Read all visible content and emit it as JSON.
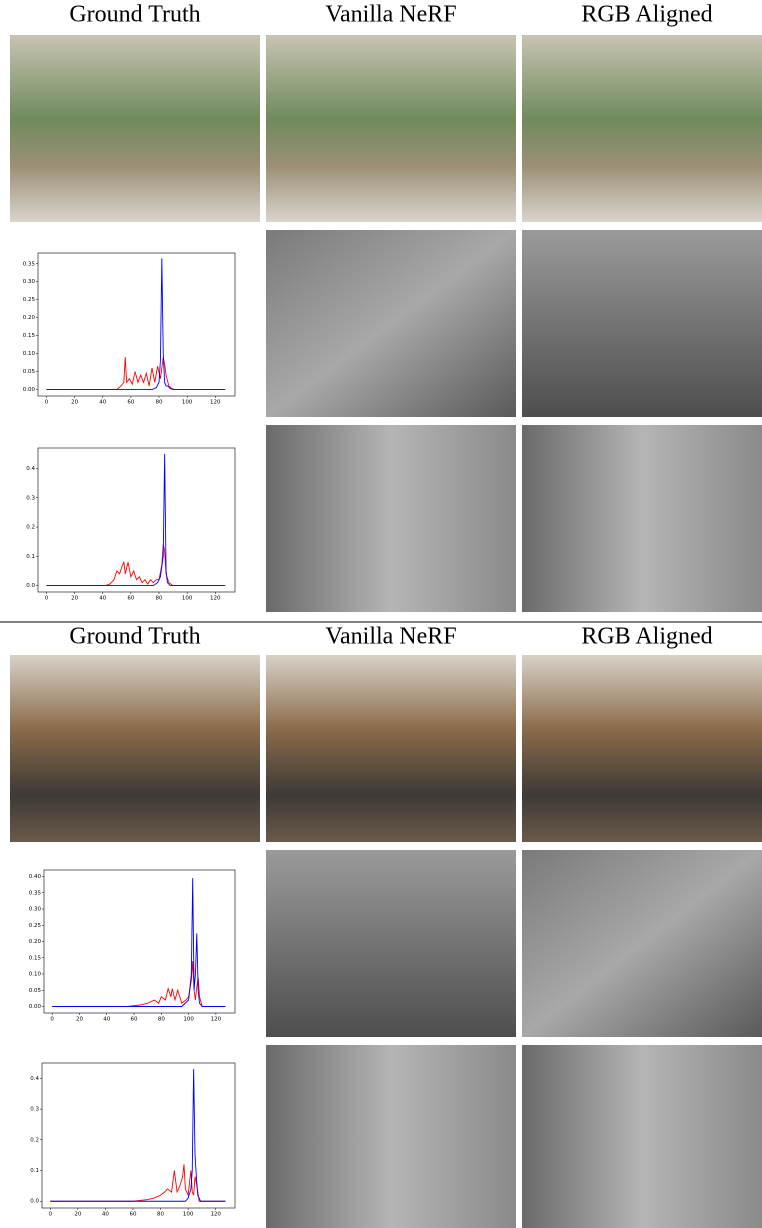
{
  "sections": [
    {
      "headers": [
        "Ground Truth",
        "Vanilla NeRF",
        "RGB Aligned"
      ]
    },
    {
      "headers": [
        "Ground Truth",
        "Vanilla NeRF",
        "RGB Aligned"
      ]
    }
  ],
  "chart_data": [
    {
      "type": "line",
      "xlim": [
        -6,
        134
      ],
      "ylim": [
        -0.018,
        0.38
      ],
      "xticks": [
        0,
        20,
        40,
        60,
        80,
        100,
        120
      ],
      "yticks": [
        {
          "value": 0,
          "label": "0.00"
        },
        0.05,
        {
          "value": 0.1,
          "label": "0.10"
        },
        0.15,
        {
          "value": 0.2,
          "label": "0.20"
        },
        0.25,
        {
          "value": 0.3,
          "label": "0.30"
        },
        0.35
      ],
      "series": [
        {
          "color": "#ff0000",
          "x": [
            0,
            50,
            53,
            55,
            56,
            57,
            59,
            61,
            63,
            65,
            67,
            69,
            71,
            73,
            75,
            77,
            79,
            81,
            83,
            84,
            85,
            87,
            89,
            91,
            127
          ],
          "values": [
            0,
            0,
            0.01,
            0.02,
            0.09,
            0.02,
            0.03,
            0.015,
            0.05,
            0.02,
            0.04,
            0.02,
            0.045,
            0.01,
            0.06,
            0.02,
            0.065,
            0.03,
            0.09,
            0.07,
            0.04,
            0.01,
            0.003,
            0,
            0
          ]
        },
        {
          "color": "#0000ff",
          "x": [
            0,
            75,
            78,
            80,
            81,
            82,
            83,
            84,
            85,
            86,
            88,
            90,
            127
          ],
          "values": [
            0,
            0,
            0.005,
            0.02,
            0.08,
            0.365,
            0.1,
            0.02,
            0.01,
            0.01,
            0.003,
            0,
            0
          ]
        }
      ]
    },
    {
      "type": "line",
      "xlim": [
        -6,
        134
      ],
      "ylim": [
        -0.022,
        0.47
      ],
      "xticks": [
        0,
        20,
        40,
        60,
        80,
        100,
        120
      ],
      "yticks": [
        {
          "value": 0,
          "label": "0.0"
        },
        0.1,
        0.2,
        0.3,
        0.4
      ],
      "series": [
        {
          "color": "#ff0000",
          "x": [
            0,
            42,
            45,
            48,
            50,
            52,
            54,
            55,
            56,
            58,
            60,
            62,
            64,
            66,
            68,
            70,
            72,
            74,
            76,
            78,
            80,
            82,
            83,
            84,
            85,
            87,
            90,
            127
          ],
          "values": [
            0,
            0,
            0.005,
            0.02,
            0.05,
            0.04,
            0.07,
            0.08,
            0.04,
            0.08,
            0.03,
            0.05,
            0.02,
            0.03,
            0.01,
            0.02,
            0.005,
            0.02,
            0.01,
            0.02,
            0.02,
            0.07,
            0.14,
            0.12,
            0.04,
            0.01,
            0,
            0
          ]
        },
        {
          "color": "#0000ff",
          "x": [
            0,
            76,
            79,
            81,
            83,
            84,
            85,
            86,
            88,
            127
          ],
          "values": [
            0,
            0,
            0.01,
            0.03,
            0.1,
            0.45,
            0.05,
            0.01,
            0,
            0
          ]
        }
      ]
    },
    {
      "type": "line",
      "xlim": [
        -6,
        134
      ],
      "ylim": [
        -0.02,
        0.42
      ],
      "xticks": [
        0,
        20,
        40,
        60,
        80,
        100,
        120
      ],
      "yticks": [
        {
          "value": 0,
          "label": "0.00"
        },
        0.05,
        {
          "value": 0.1,
          "label": "0.10"
        },
        0.15,
        {
          "value": 0.2,
          "label": "0.20"
        },
        0.25,
        {
          "value": 0.3,
          "label": "0.30"
        },
        0.35,
        {
          "value": 0.4,
          "label": "0.40"
        }
      ],
      "series": [
        {
          "color": "#ff0000",
          "x": [
            0,
            55,
            65,
            70,
            75,
            78,
            80,
            83,
            85,
            87,
            88,
            90,
            92,
            95,
            98,
            100,
            102,
            103,
            104,
            105,
            106,
            107,
            108,
            110,
            127
          ],
          "values": [
            0,
            0,
            0.005,
            0.01,
            0.02,
            0.01,
            0.03,
            0.02,
            0.055,
            0.03,
            0.055,
            0.02,
            0.05,
            0.01,
            0.02,
            0.03,
            0.08,
            0.14,
            0.05,
            0.02,
            0.06,
            0.09,
            0.03,
            0,
            0
          ]
        },
        {
          "color": "#0000ff",
          "x": [
            0,
            95,
            100,
            102,
            103,
            104,
            105,
            106,
            107,
            108,
            110,
            127
          ],
          "values": [
            0,
            0,
            0.02,
            0.1,
            0.395,
            0.05,
            0.1,
            0.225,
            0.05,
            0.01,
            0,
            0
          ]
        }
      ]
    },
    {
      "type": "line",
      "xlim": [
        -6,
        134
      ],
      "ylim": [
        -0.022,
        0.45
      ],
      "xticks": [
        0,
        20,
        40,
        60,
        80,
        100,
        120
      ],
      "yticks": [
        {
          "value": 0,
          "label": "0.0"
        },
        0.1,
        0.2,
        0.3,
        0.4
      ],
      "series": [
        {
          "color": "#ff0000",
          "x": [
            0,
            60,
            70,
            75,
            80,
            83,
            85,
            88,
            90,
            92,
            94,
            96,
            97,
            98,
            100,
            102,
            103,
            104,
            105,
            106,
            108,
            127
          ],
          "values": [
            0,
            0,
            0.005,
            0.01,
            0.02,
            0.03,
            0.04,
            0.03,
            0.1,
            0.03,
            0.05,
            0.08,
            0.12,
            0.04,
            0.02,
            0.1,
            0.03,
            0.02,
            0.08,
            0.06,
            0,
            0
          ]
        },
        {
          "color": "#0000ff",
          "x": [
            0,
            98,
            100,
            102,
            103,
            104,
            105,
            106,
            107,
            109,
            127
          ],
          "values": [
            0,
            0,
            0.01,
            0.04,
            0.1,
            0.43,
            0.15,
            0.08,
            0.02,
            0,
            0
          ]
        }
      ]
    }
  ]
}
